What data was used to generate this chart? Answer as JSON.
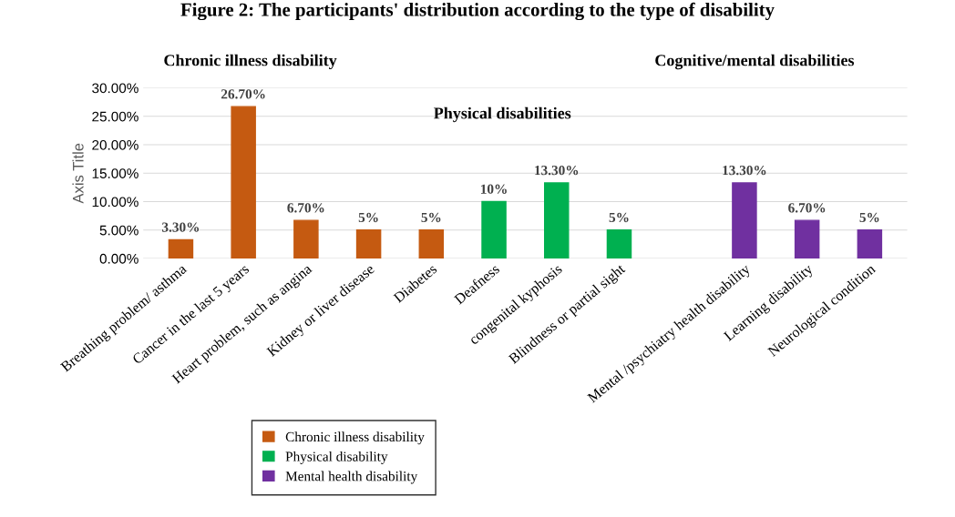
{
  "chart_data": {
    "type": "bar",
    "title": "Figure 2: The participants' distribution according to the type of disability",
    "ylabel": "Axis Title",
    "categories": [
      "Breathing problem/ asthma",
      "Cancer in the last 5 years",
      "Heart problem, such as angina",
      "Kidney or liver disease",
      "Diabetes",
      "Deafness",
      "congenital kyphosis",
      "Blindness or partial sight",
      null,
      "Mental /psychiatry health disability",
      "Learning disability",
      "Neurological condition"
    ],
    "series": [
      {
        "name": "Chronic illness disability",
        "color": "#c55a11",
        "values": [
          3.3,
          26.7,
          6.7,
          5,
          5,
          null,
          null,
          null,
          null,
          null,
          null,
          null
        ],
        "value_labels": [
          "3.30%",
          "26.70%",
          "6.70%",
          "5%",
          "5%",
          null,
          null,
          null,
          null,
          null,
          null,
          null
        ]
      },
      {
        "name": "Physical disability",
        "color": "#00b050",
        "values": [
          null,
          null,
          null,
          null,
          null,
          10,
          13.3,
          5,
          null,
          null,
          null,
          null
        ],
        "value_labels": [
          null,
          null,
          null,
          null,
          null,
          "10%",
          "13.30%",
          "5%",
          null,
          null,
          null,
          null
        ]
      },
      {
        "name": "Mental health disability",
        "color": "#7030a0",
        "values": [
          null,
          null,
          null,
          null,
          null,
          null,
          null,
          null,
          null,
          13.3,
          6.7,
          5
        ],
        "value_labels": [
          null,
          null,
          null,
          null,
          null,
          null,
          null,
          null,
          null,
          "13.30%",
          "6.70%",
          "5%"
        ]
      }
    ],
    "annotations": [
      "Chronic illness disability",
      "Physical disabilities",
      "Cognitive/mental disabilities"
    ],
    "ylim": [
      0,
      30
    ],
    "yticks": [
      {
        "value": 0,
        "label": "0.00%"
      },
      {
        "value": 5,
        "label": "5.00%"
      },
      {
        "value": 10,
        "label": "10.00%"
      },
      {
        "value": 15,
        "label": "15.00%"
      },
      {
        "value": 20,
        "label": "20.00%"
      },
      {
        "value": 25,
        "label": "25.00%"
      },
      {
        "value": 30,
        "label": "30.00%"
      }
    ],
    "grid": "y",
    "legend": "bottom"
  }
}
